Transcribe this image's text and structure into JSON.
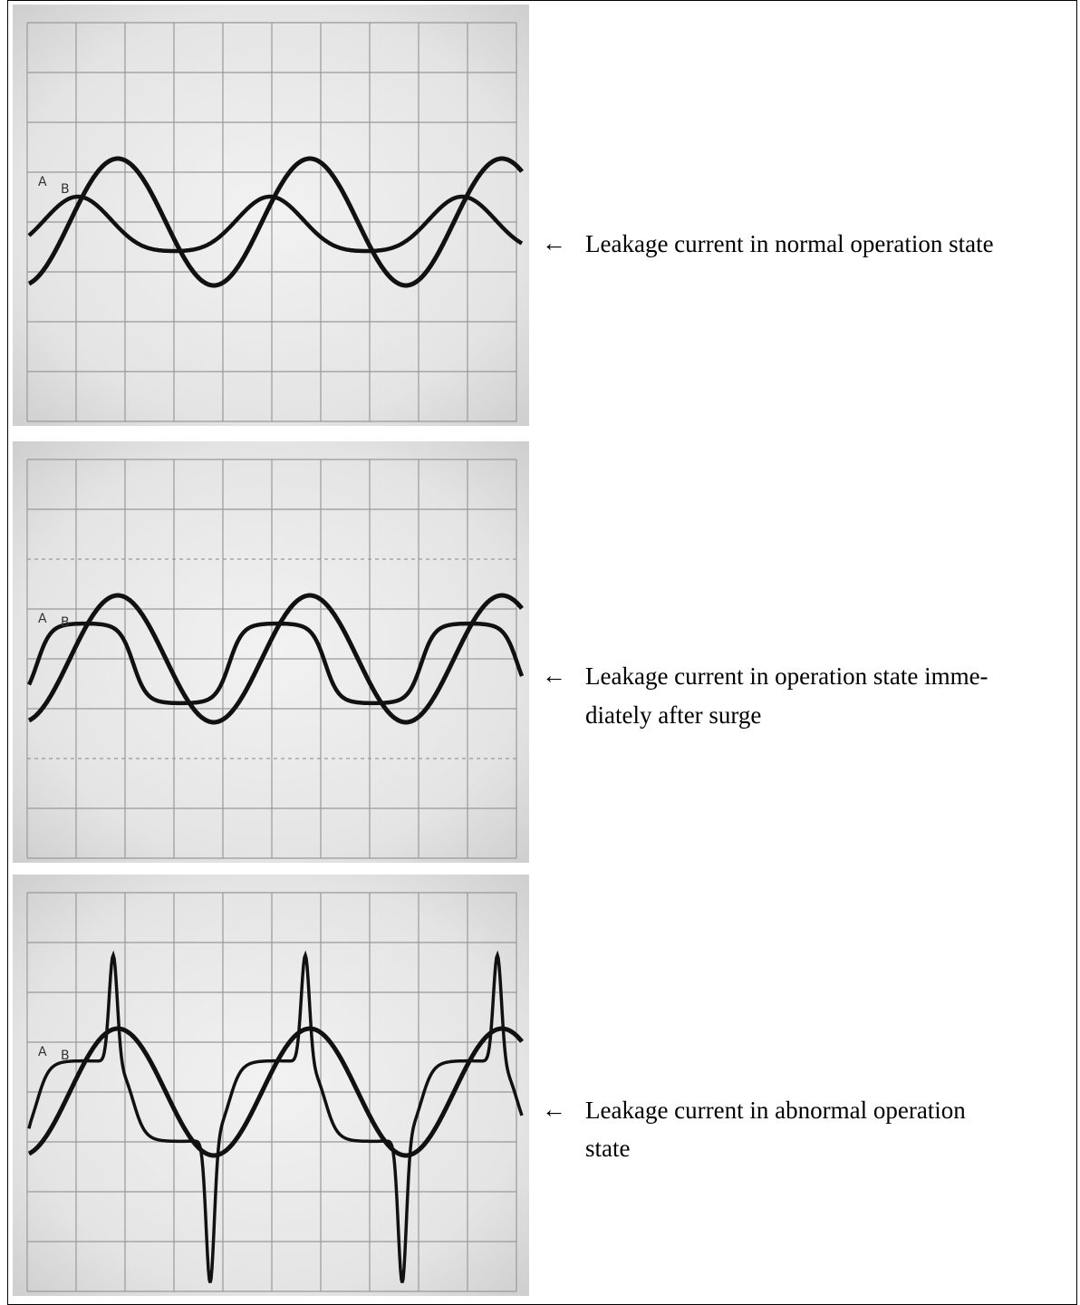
{
  "panels": [
    {
      "trace_labels": [
        "A",
        "B"
      ],
      "arrow": "←",
      "caption_lines": [
        "Leakage current in normal operation state"
      ]
    },
    {
      "trace_labels": [
        "A",
        "B"
      ],
      "arrow": "←",
      "caption_lines": [
        "Leakage current in operation state imme-",
        "diately after surge"
      ]
    },
    {
      "trace_labels": [
        "A",
        "B"
      ],
      "arrow": "←",
      "caption_lines": [
        "Leakage current in abnormal operation",
        "state"
      ]
    }
  ]
}
